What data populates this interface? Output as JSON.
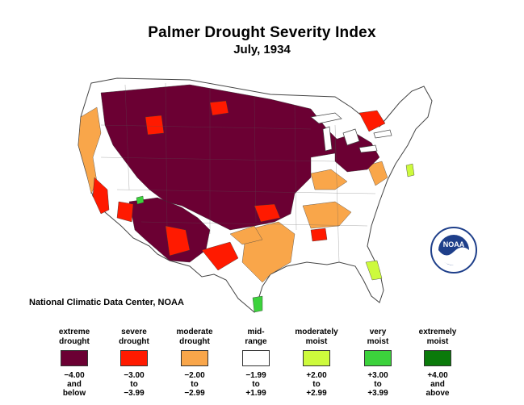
{
  "title": "Palmer Drought Severity Index",
  "subtitle": "July, 1934",
  "credit": "National Climatic Data Center, NOAA",
  "logo": {
    "text": "NOAA",
    "icon": "noaa-logo-icon"
  },
  "legend": [
    {
      "label": [
        "extreme",
        "drought"
      ],
      "range": [
        "−4.00",
        "and",
        "below"
      ],
      "color": "#6b0033"
    },
    {
      "label": [
        "severe",
        "drought"
      ],
      "range": [
        "−3.00",
        "to",
        "−3.99"
      ],
      "color": "#ff1a00"
    },
    {
      "label": [
        "moderate",
        "drought"
      ],
      "range": [
        "−2.00",
        "to",
        "−2.99"
      ],
      "color": "#f9a64a"
    },
    {
      "label": [
        "mid-",
        "range"
      ],
      "range": [
        "−1.99",
        "to",
        "+1.99"
      ],
      "color": "#ffffff"
    },
    {
      "label": [
        "moderately",
        "moist"
      ],
      "range": [
        "+2.00",
        "to",
        "+2.99"
      ],
      "color": "#cdfa3c"
    },
    {
      "label": [
        "very",
        "moist"
      ],
      "range": [
        "+3.00",
        "to",
        "+3.99"
      ],
      "color": "#3cd23c"
    },
    {
      "label": [
        "extremely",
        "moist"
      ],
      "range": [
        "+4.00",
        "and",
        "above"
      ],
      "color": "#0a7a0a"
    }
  ]
}
